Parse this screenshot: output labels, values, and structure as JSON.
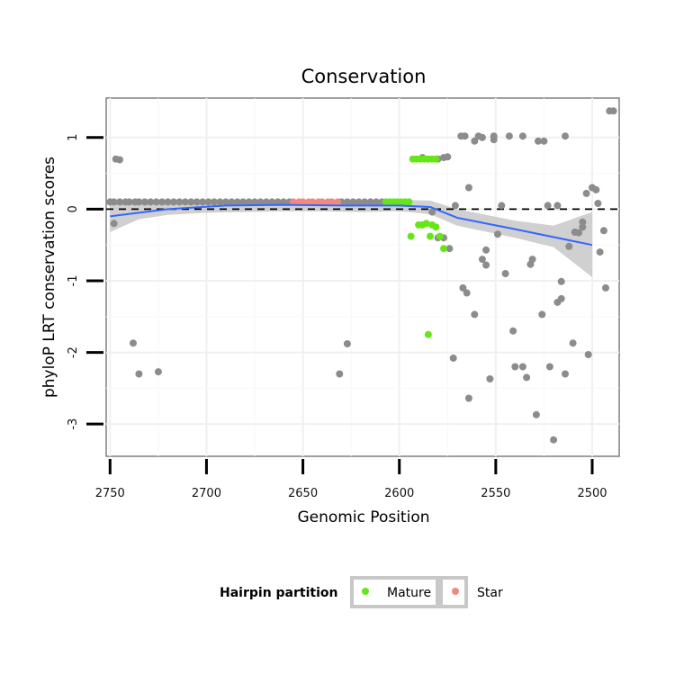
{
  "chart_data": {
    "type": "scatter",
    "title": "Conservation",
    "xlabel": "Genomic Position",
    "ylabel": "phyloP LRT conservation scores",
    "x_reversed": true,
    "xlim": [
      2752,
      2486
    ],
    "ylim": [
      -3.45,
      1.55
    ],
    "x_ticks": [
      2750,
      2700,
      2650,
      2600,
      2550,
      2500
    ],
    "y_ticks": [
      1,
      0,
      -1,
      -2,
      -3
    ],
    "reference_line": {
      "y": 0,
      "style": "dashed"
    },
    "grid": true,
    "legend": {
      "title": "Hairpin partition",
      "placement": "bottom",
      "entries": [
        {
          "label": "Mature",
          "color": "#66e619"
        },
        {
          "label": "Star",
          "color": "#f08a7e"
        }
      ]
    },
    "colors": {
      "other": "#8c8c8c",
      "mature": "#66e619",
      "star": "#f08a7e",
      "smooth": "#3366ff",
      "band": "#c8c8c8"
    },
    "series": [
      {
        "name": "Other",
        "points": [
          [
            2750,
            0.1
          ],
          [
            2748,
            0.1
          ],
          [
            2745,
            0.1
          ],
          [
            2742,
            0.1
          ],
          [
            2740,
            0.1
          ],
          [
            2737,
            0.1
          ],
          [
            2735,
            0.1
          ],
          [
            2732,
            0.1
          ],
          [
            2729,
            0.1
          ],
          [
            2726,
            0.1
          ],
          [
            2723,
            0.1
          ],
          [
            2720,
            0.1
          ],
          [
            2717,
            0.1
          ],
          [
            2714,
            0.1
          ],
          [
            2711,
            0.1
          ],
          [
            2708,
            0.1
          ],
          [
            2705,
            0.1
          ],
          [
            2702,
            0.1
          ],
          [
            2699,
            0.1
          ],
          [
            2696,
            0.1
          ],
          [
            2693,
            0.1
          ],
          [
            2690,
            0.1
          ],
          [
            2687,
            0.1
          ],
          [
            2684,
            0.1
          ],
          [
            2681,
            0.1
          ],
          [
            2678,
            0.1
          ],
          [
            2675,
            0.1
          ],
          [
            2672,
            0.1
          ],
          [
            2669,
            0.1
          ],
          [
            2666,
            0.1
          ],
          [
            2663,
            0.1
          ],
          [
            2660,
            0.1
          ],
          [
            2657,
            0.1
          ],
          [
            2630,
            0.1
          ],
          [
            2627,
            0.1
          ],
          [
            2624,
            0.1
          ],
          [
            2621,
            0.1
          ],
          [
            2618,
            0.1
          ],
          [
            2615,
            0.1
          ],
          [
            2612,
            0.1
          ],
          [
            2609,
            0.1
          ],
          [
            2747,
            0.7
          ],
          [
            2745,
            0.69
          ],
          [
            2748,
            -0.2
          ],
          [
            2738,
            -1.87
          ],
          [
            2735,
            -2.3
          ],
          [
            2725,
            -2.27
          ],
          [
            2631,
            -2.3
          ],
          [
            2627,
            -1.88
          ],
          [
            2580,
            0.7
          ],
          [
            2577,
            0.72
          ],
          [
            2575,
            0.73
          ],
          [
            2580,
            -0.4
          ],
          [
            2577,
            -0.4
          ],
          [
            2574,
            -0.55
          ],
          [
            2571,
            0.05
          ],
          [
            2572,
            -2.08
          ],
          [
            2568,
            1.02
          ],
          [
            2566,
            1.02
          ],
          [
            2567,
            -1.1
          ],
          [
            2565,
            -1.17
          ],
          [
            2564,
            -2.64
          ],
          [
            2561,
            0.95
          ],
          [
            2559,
            1.02
          ],
          [
            2561,
            -1.47
          ],
          [
            2557,
            1.0
          ],
          [
            2557,
            -0.7
          ],
          [
            2555,
            -0.57
          ],
          [
            2555,
            -0.78
          ],
          [
            2553,
            -2.37
          ],
          [
            2551,
            0.97
          ],
          [
            2551,
            1.02
          ],
          [
            2547,
            0.05
          ],
          [
            2549,
            -0.35
          ],
          [
            2543,
            1.02
          ],
          [
            2545,
            -0.9
          ],
          [
            2541,
            -1.7
          ],
          [
            2540,
            -2.2
          ],
          [
            2536,
            1.02
          ],
          [
            2536,
            -2.2
          ],
          [
            2534,
            -2.35
          ],
          [
            2531,
            -0.7
          ],
          [
            2532,
            -0.77
          ],
          [
            2529,
            -2.87
          ],
          [
            2528,
            0.95
          ],
          [
            2525,
            0.95
          ],
          [
            2526,
            -1.47
          ],
          [
            2522,
            -2.2
          ],
          [
            2523,
            0.05
          ],
          [
            2520,
            -3.22
          ],
          [
            2518,
            0.05
          ],
          [
            2518,
            -1.3
          ],
          [
            2516,
            -1.25
          ],
          [
            2516,
            -1.01
          ],
          [
            2514,
            1.02
          ],
          [
            2514,
            -2.3
          ],
          [
            2512,
            -0.52
          ],
          [
            2510,
            -1.87
          ],
          [
            2509,
            -0.32
          ],
          [
            2507,
            -0.33
          ],
          [
            2505,
            -0.18
          ],
          [
            2505,
            -0.25
          ],
          [
            2503,
            0.22
          ],
          [
            2500,
            0.3
          ],
          [
            2498,
            0.27
          ],
          [
            2502,
            -2.03
          ],
          [
            2496,
            -0.6
          ],
          [
            2497,
            0.08
          ],
          [
            2494,
            -0.3
          ],
          [
            2493,
            -1.1
          ],
          [
            2491,
            1.37
          ],
          [
            2489,
            1.37
          ],
          [
            2588,
            0.72
          ],
          [
            2583,
            -0.04
          ],
          [
            2564,
            0.3
          ]
        ]
      },
      {
        "name": "Mature",
        "points": [
          [
            2607,
            0.1
          ],
          [
            2605,
            0.1
          ],
          [
            2603,
            0.1
          ],
          [
            2601,
            0.1
          ],
          [
            2599,
            0.1
          ],
          [
            2597,
            0.1
          ],
          [
            2595,
            0.1
          ],
          [
            2593,
            0.7
          ],
          [
            2591,
            0.7
          ],
          [
            2589,
            0.7
          ],
          [
            2587,
            0.7
          ],
          [
            2585,
            0.7
          ],
          [
            2583,
            0.7
          ],
          [
            2581,
            0.7
          ],
          [
            2594,
            -0.38
          ],
          [
            2590,
            -0.22
          ],
          [
            2588,
            -0.22
          ],
          [
            2586,
            -0.2
          ],
          [
            2584,
            -0.38
          ],
          [
            2583,
            -0.22
          ],
          [
            2581,
            -0.25
          ],
          [
            2579,
            -0.38
          ],
          [
            2577,
            -0.55
          ],
          [
            2585,
            -1.75
          ]
        ]
      },
      {
        "name": "Star",
        "points": [
          [
            2655,
            0.1
          ],
          [
            2652,
            0.1
          ],
          [
            2650,
            0.1
          ],
          [
            2647,
            0.1
          ],
          [
            2645,
            0.1
          ],
          [
            2642,
            0.1
          ],
          [
            2640,
            0.1
          ],
          [
            2637,
            0.1
          ],
          [
            2635,
            0.1
          ],
          [
            2632,
            0.1
          ]
        ]
      }
    ],
    "smooth": [
      [
        2750,
        -0.1
      ],
      [
        2720,
        0.0
      ],
      [
        2690,
        0.05
      ],
      [
        2660,
        0.06
      ],
      [
        2630,
        0.05
      ],
      [
        2600,
        0.05
      ],
      [
        2584,
        0.03
      ],
      [
        2570,
        -0.12
      ],
      [
        2540,
        -0.28
      ],
      [
        2500,
        -0.5
      ]
    ],
    "band": [
      [
        2750,
        -0.32,
        0.13
      ],
      [
        2735,
        -0.14,
        0.1
      ],
      [
        2720,
        -0.08,
        0.09
      ],
      [
        2700,
        -0.05,
        0.1
      ],
      [
        2680,
        -0.04,
        0.12
      ],
      [
        2660,
        -0.03,
        0.13
      ],
      [
        2640,
        -0.03,
        0.13
      ],
      [
        2620,
        -0.04,
        0.13
      ],
      [
        2600,
        -0.03,
        0.13
      ],
      [
        2584,
        -0.07,
        0.12
      ],
      [
        2570,
        -0.23,
        0.0
      ],
      [
        2540,
        -0.4,
        -0.16
      ],
      [
        2520,
        -0.53,
        -0.23
      ],
      [
        2500,
        -0.95,
        -0.04
      ]
    ]
  }
}
